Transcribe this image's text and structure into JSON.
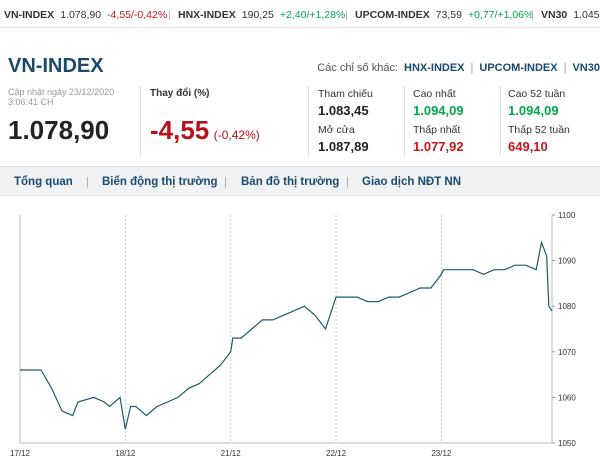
{
  "ticker": [
    {
      "name": "VN-INDEX",
      "value": "1.078,90",
      "change": "-4,55/-0,42%",
      "dir": "down"
    },
    {
      "name": "HNX-INDEX",
      "value": "190,25",
      "change": "+2,40/+1,28%",
      "dir": "up"
    },
    {
      "name": "UPCOM-INDEX",
      "value": "73,59",
      "change": "+0,77/+1,06%",
      "dir": "up"
    },
    {
      "name": "VN30",
      "value": "1.045,",
      "change": "",
      "dir": "none"
    }
  ],
  "header": {
    "title": "VN-INDEX",
    "others_label": "Các chỉ số khác:",
    "others": [
      "HNX-INDEX",
      "UPCOM-INDEX",
      "VN30"
    ],
    "updated": "Cập nhật ngày 23/12/2020 3:06:41 CH",
    "price": "1.078,90",
    "change_label": "Thay đổi (%)",
    "change_value": "-4,55",
    "change_pct": "(-0,42%)"
  },
  "stats": {
    "ref_label": "Tham chiếu",
    "ref_value": "1.083,45",
    "open_label": "Mở cửa",
    "open_value": "1.087,89",
    "high_label": "Cao nhất",
    "high_value": "1.094,09",
    "low_label": "Thấp nhất",
    "low_value": "1.077,92",
    "high52_label": "Cao 52 tuần",
    "high52_value": "1.094,09",
    "low52_label": "Thấp 52 tuần",
    "low52_value": "649,10"
  },
  "nav": [
    "Tổng quan",
    "Biến động thị trường",
    "Bản đồ thị trường",
    "Giao dịch NĐT NN"
  ],
  "colors": {
    "line": "#1d5a6e",
    "brand": "#1a4b6e",
    "up": "#00a651",
    "down": "#c4161c"
  },
  "chart_data": {
    "type": "line",
    "x_labels": [
      "17/12",
      "18/12",
      "21/12",
      "22/12",
      "23/12"
    ],
    "y_ticks": [
      1050,
      1060,
      1070,
      1080,
      1090,
      1100
    ],
    "ylim": [
      1050,
      1100
    ],
    "grid": "vertical-dashed",
    "series": [
      {
        "x": [
          0,
          0.2,
          0.3,
          0.4,
          0.5,
          0.55,
          0.7,
          0.8,
          0.85,
          0.9,
          0.95,
          1.0,
          1.05,
          1.1,
          1.15,
          1.2,
          1.3,
          1.4,
          1.5,
          1.6,
          1.7,
          1.8,
          1.9,
          2.0,
          2.02,
          2.1,
          2.2,
          2.3,
          2.4,
          2.5,
          2.6,
          2.7,
          2.8,
          2.9,
          3.0,
          3.02,
          3.1,
          3.2,
          3.3,
          3.4,
          3.5,
          3.6,
          3.7,
          3.8,
          3.9,
          4.0,
          4.02,
          4.1,
          4.2,
          4.3,
          4.4,
          4.5,
          4.6,
          4.7,
          4.8,
          4.9,
          4.95,
          5.0,
          5.02,
          5.05
        ],
        "y": [
          1066,
          1066,
          1062,
          1057,
          1056,
          1059,
          1060,
          1059,
          1058,
          1059,
          1060,
          1053,
          1058,
          1058,
          1057,
          1056,
          1058,
          1059,
          1060,
          1062,
          1063,
          1065,
          1067,
          1070,
          1073,
          1073,
          1075,
          1077,
          1077,
          1078,
          1079,
          1080,
          1078,
          1075,
          1082,
          1082,
          1082,
          1082,
          1081,
          1081,
          1082,
          1082,
          1083,
          1084,
          1084,
          1087,
          1088,
          1088,
          1088,
          1088,
          1087,
          1088,
          1088,
          1089,
          1089,
          1088,
          1094,
          1091,
          1080,
          1079
        ]
      }
    ]
  }
}
